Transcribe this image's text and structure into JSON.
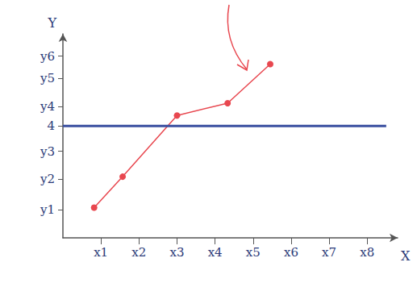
{
  "chart_data": {
    "type": "line",
    "x_label": "X",
    "y_label": "Y",
    "xlim": [
      0,
      8.8
    ],
    "xticks": [
      {
        "value": 1,
        "label": "x1"
      },
      {
        "value": 2,
        "label": "x2"
      },
      {
        "value": 3,
        "label": "x3"
      },
      {
        "value": 4,
        "label": "x4"
      },
      {
        "value": 5,
        "label": "x5"
      },
      {
        "value": 6,
        "label": "x6"
      },
      {
        "value": 7,
        "label": "x7"
      },
      {
        "value": 8,
        "label": "x8"
      }
    ],
    "ylim": [
      0,
      7.3
    ],
    "yticks": [
      {
        "value": 1,
        "label": "y1"
      },
      {
        "value": 2.1,
        "label": "y2"
      },
      {
        "value": 3.1,
        "label": "y3"
      },
      4,
      {
        "value": 4.7,
        "label": "y4"
      },
      {
        "value": 5.7,
        "label": "y5"
      },
      {
        "value": 6.5,
        "label": "y6"
      }
    ],
    "grid": false,
    "series": [
      {
        "color": "#e8474f",
        "marker": "circle",
        "line_style": "solid",
        "x": [
          0.82,
          1.57,
          3.0,
          4.33,
          5.45
        ],
        "values": [
          1.08,
          2.19,
          4.38,
          4.82,
          6.22
        ]
      },
      {
        "color": "#3a4fa0",
        "marker": "none",
        "line_style": "solid",
        "x": [
          0,
          8.5
        ],
        "values": [
          4,
          4
        ]
      }
    ]
  }
}
